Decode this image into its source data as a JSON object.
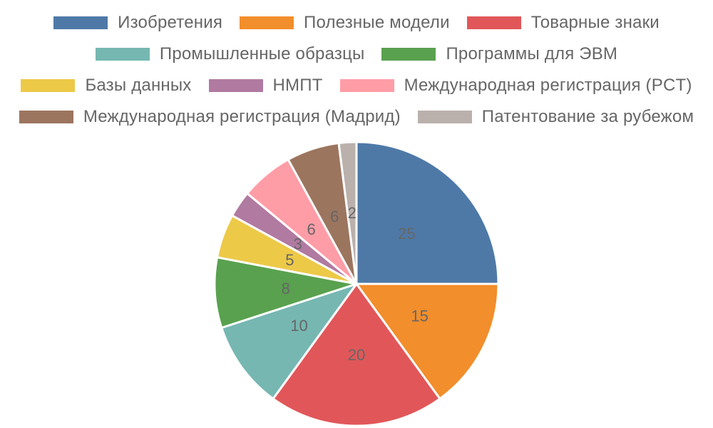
{
  "chart_data": {
    "type": "pie",
    "legend_position": "top",
    "categories": [
      "Изобретения",
      "Полезные модели",
      "Товарные знаки",
      "Промышленные образцы",
      "Программы для ЭВМ",
      "Базы данных",
      "НМПТ",
      "Международная регистрация (PCT)",
      "Международная регистрация (Мадрид)",
      "Патентование за рубежом"
    ],
    "values": [
      25,
      15,
      20,
      10,
      8,
      5,
      3,
      6,
      6,
      2
    ],
    "colors": [
      "#4e79a7",
      "#f28e2b",
      "#e15759",
      "#76b7b2",
      "#59a14f",
      "#edc948",
      "#b07aa1",
      "#ff9da7",
      "#9c755f",
      "#bab0ac"
    ]
  }
}
